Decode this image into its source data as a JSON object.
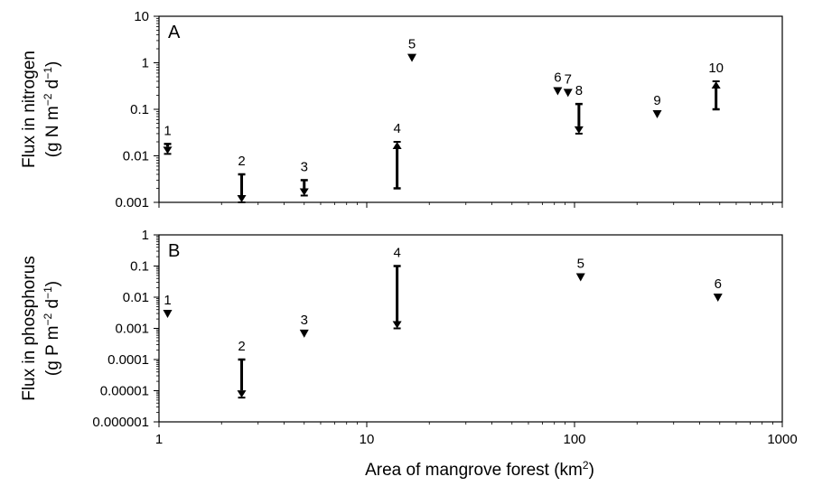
{
  "chart_data": [
    {
      "type": "scatter",
      "panel_label": "A",
      "xscale": "log",
      "yscale": "log",
      "xlim": [
        1,
        1000
      ],
      "ylim": [
        0.001,
        10
      ],
      "xticks": [
        "1",
        "10",
        "100",
        "1000"
      ],
      "yticks": [
        "0.001",
        "0.01",
        "0.1",
        "1",
        "10"
      ],
      "ylabel_lines": [
        "Flux in nitrogen",
        "(g N m",
        "−2",
        " d",
        "−1",
        ")"
      ],
      "points": [
        {
          "label": "1",
          "x": 1.1,
          "y_from": 0.018,
          "y_to": 0.011
        },
        {
          "label": "2",
          "x": 2.5,
          "y_from": 0.004,
          "y_to": 0.001
        },
        {
          "label": "3",
          "x": 5.0,
          "y_from": 0.003,
          "y_to": 0.0014
        },
        {
          "label": "4",
          "x": 14.0,
          "y_from": 0.002,
          "y_to": 0.02
        },
        {
          "label": "5",
          "x": 16.5,
          "y": 1.3
        },
        {
          "label": "6",
          "x": 83,
          "y": 0.25
        },
        {
          "label": "7",
          "x": 93,
          "y": 0.23
        },
        {
          "label": "8",
          "x": 105,
          "y_from": 0.13,
          "y_to": 0.03
        },
        {
          "label": "9",
          "x": 250,
          "y": 0.08
        },
        {
          "label": "10",
          "x": 480,
          "y_from": 0.1,
          "y_to": 0.4
        }
      ]
    },
    {
      "type": "scatter",
      "panel_label": "B",
      "xscale": "log",
      "yscale": "log",
      "xlim": [
        1,
        1000
      ],
      "ylim": [
        1e-06,
        1
      ],
      "xticks": [
        "1",
        "10",
        "100",
        "1000"
      ],
      "yticks": [
        "0.000001",
        "0.00001",
        "0.0001",
        "0.001",
        "0.01",
        "0.1",
        "1"
      ],
      "ylabel_lines": [
        "Flux in phosphorus",
        "(g P m",
        "−2",
        " d",
        "−1",
        ")"
      ],
      "points": [
        {
          "label": "1",
          "x": 1.1,
          "y": 0.003
        },
        {
          "label": "2",
          "x": 2.5,
          "y_from": 0.0001,
          "y_to": 6e-06
        },
        {
          "label": "3",
          "x": 5.0,
          "y": 0.0007
        },
        {
          "label": "4",
          "x": 14.0,
          "y_from": 0.1,
          "y_to": 0.001
        },
        {
          "label": "5",
          "x": 107,
          "y": 0.045
        },
        {
          "label": "6",
          "x": 490,
          "y": 0.01
        }
      ]
    }
  ],
  "xlabel": "Area of mangrove forest (km",
  "xlabel_sup": "2",
  "xlabel_end": ")"
}
